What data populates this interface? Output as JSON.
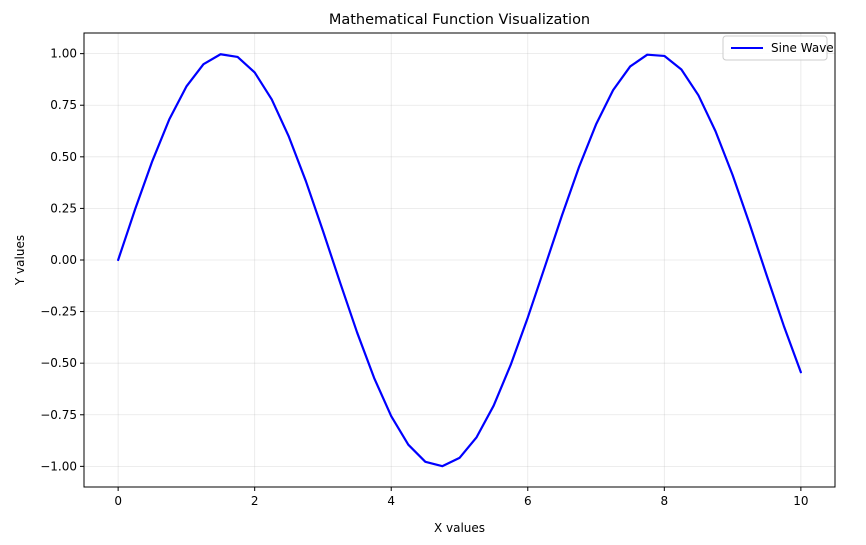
{
  "chart_data": {
    "type": "line",
    "title": "Mathematical Function Visualization",
    "xlabel": "X values",
    "ylabel": "Y values",
    "xlim": [
      -0.5,
      10.5
    ],
    "ylim": [
      -1.1,
      1.1
    ],
    "x_ticks": [
      0,
      2,
      4,
      6,
      8,
      10
    ],
    "x_tick_labels": [
      "0",
      "2",
      "4",
      "6",
      "8",
      "10"
    ],
    "y_ticks": [
      -1.0,
      -0.75,
      -0.5,
      -0.25,
      0.0,
      0.25,
      0.5,
      0.75,
      1.0
    ],
    "y_tick_labels": [
      "−1.00",
      "−0.75",
      "−0.50",
      "−0.25",
      "0.00",
      "0.25",
      "0.50",
      "0.75",
      "1.00"
    ],
    "grid": true,
    "legend_position": "top-right",
    "series": [
      {
        "name": "Sine Wave",
        "color": "#0000ff",
        "x": [
          0,
          0.25,
          0.5,
          0.75,
          1.0,
          1.25,
          1.5,
          1.75,
          2.0,
          2.25,
          2.5,
          2.75,
          3.0,
          3.25,
          3.5,
          3.75,
          4.0,
          4.25,
          4.5,
          4.75,
          5.0,
          5.25,
          5.5,
          5.75,
          6.0,
          6.25,
          6.5,
          6.75,
          7.0,
          7.25,
          7.5,
          7.75,
          8.0,
          8.25,
          8.5,
          8.75,
          9.0,
          9.25,
          9.5,
          9.75,
          10.0
        ],
        "y": [
          0.0,
          0.247,
          0.479,
          0.682,
          0.841,
          0.949,
          0.997,
          0.984,
          0.909,
          0.778,
          0.598,
          0.382,
          0.141,
          -0.108,
          -0.351,
          -0.572,
          -0.757,
          -0.895,
          -0.978,
          -0.999,
          -0.959,
          -0.859,
          -0.706,
          -0.508,
          -0.279,
          -0.033,
          0.215,
          0.45,
          0.657,
          0.823,
          0.938,
          0.995,
          0.989,
          0.923,
          0.798,
          0.624,
          0.412,
          0.174,
          -0.075,
          -0.319,
          -0.544
        ]
      }
    ]
  }
}
